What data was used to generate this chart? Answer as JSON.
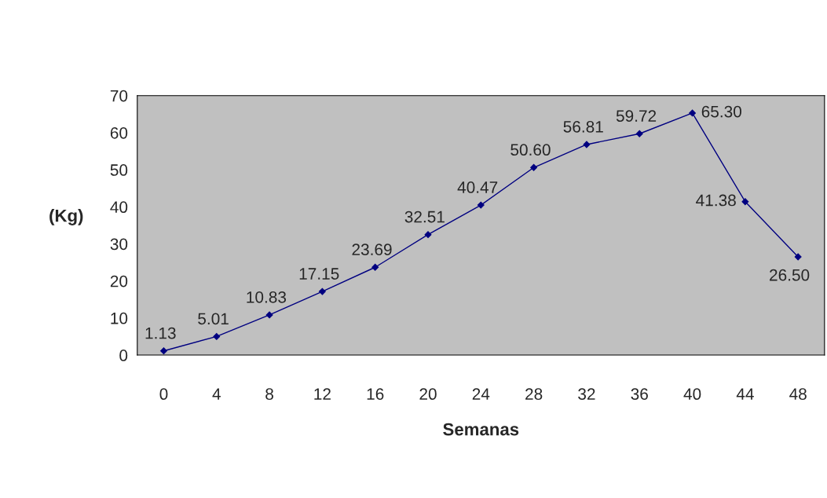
{
  "chart_data": {
    "type": "line",
    "xlabel": "Semanas",
    "ylabel": "(Kg)",
    "categories": [
      "0",
      "4",
      "8",
      "12",
      "16",
      "20",
      "24",
      "28",
      "32",
      "36",
      "40",
      "44",
      "48"
    ],
    "series": [
      {
        "color": "#000080",
        "values": [
          1.13,
          5.01,
          10.83,
          17.15,
          23.69,
          32.51,
          40.47,
          50.6,
          56.81,
          59.72,
          65.3,
          41.38,
          26.5
        ],
        "value_labels": [
          "1.13",
          "5.01",
          "10.83",
          "17.15",
          "23.69",
          "32.51",
          "40.47",
          "50.60",
          "56.81",
          "59.72",
          "65.30",
          "41.38",
          "26.50"
        ]
      }
    ],
    "ylim": [
      0,
      70
    ],
    "yticks": [
      0,
      10,
      20,
      30,
      40,
      50,
      60,
      70
    ],
    "grid": false,
    "marker": "diamond",
    "line_style": "solid"
  }
}
